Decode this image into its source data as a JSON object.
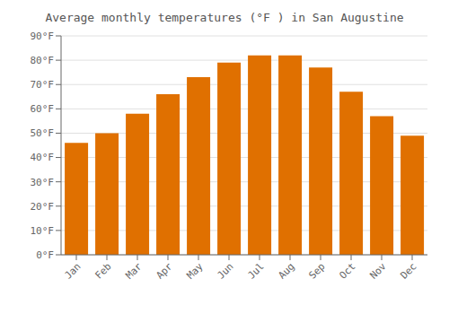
{
  "chart_data": {
    "type": "bar",
    "title": "Average monthly temperatures (°F ) in San Augustine",
    "categories": [
      "Jan",
      "Feb",
      "Mar",
      "Apr",
      "May",
      "Jun",
      "Jul",
      "Aug",
      "Sep",
      "Oct",
      "Nov",
      "Dec"
    ],
    "values": [
      46,
      50,
      58,
      66,
      73,
      79,
      82,
      82,
      77,
      67,
      57,
      49
    ],
    "color": "#E07000",
    "ylim": [
      0,
      90
    ],
    "yticks": [
      {
        "value": 0,
        "label": "0°F"
      },
      {
        "value": 10,
        "label": "10°F"
      },
      {
        "value": 20,
        "label": "20°F"
      },
      {
        "value": 30,
        "label": "30°F"
      },
      {
        "value": 40,
        "label": "40°F"
      },
      {
        "value": 50,
        "label": "50°F"
      },
      {
        "value": 60,
        "label": "60°F"
      },
      {
        "value": 70,
        "label": "70°F"
      },
      {
        "value": 80,
        "label": "80°F"
      },
      {
        "value": 90,
        "label": "90°F"
      }
    ],
    "grid": true
  }
}
